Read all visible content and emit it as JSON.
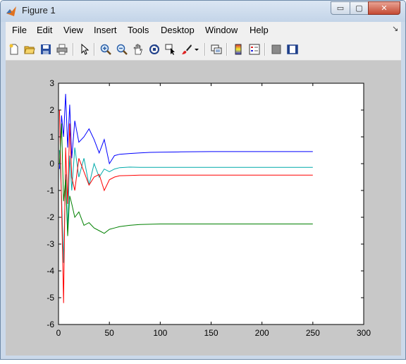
{
  "window": {
    "title": "Figure 1",
    "minimize_label": "▭",
    "maximize_label": "▢",
    "close_label": "✕"
  },
  "menu": {
    "items": [
      "File",
      "Edit",
      "View",
      "Insert",
      "Tools",
      "Desktop",
      "Window",
      "Help"
    ],
    "overflow_label": "↘"
  },
  "toolbar": {
    "buttons": [
      {
        "icon": "new-figure-icon"
      },
      {
        "icon": "open-file-icon"
      },
      {
        "icon": "save-icon"
      },
      {
        "icon": "print-icon"
      },
      {
        "icon": "edit-plot-arrow-icon"
      },
      {
        "icon": "zoom-in-icon"
      },
      {
        "icon": "zoom-out-icon"
      },
      {
        "icon": "pan-hand-icon"
      },
      {
        "icon": "rotate-3d-icon"
      },
      {
        "icon": "data-cursor-icon"
      },
      {
        "icon": "brush-icon"
      },
      {
        "icon": "brush-dropdown-icon"
      },
      {
        "icon": "link-plot-icon"
      },
      {
        "icon": "colorbar-icon"
      },
      {
        "icon": "legend-icon"
      },
      {
        "icon": "hide-plot-tools-icon"
      },
      {
        "icon": "show-plot-tools-icon"
      }
    ]
  },
  "chart_data": {
    "type": "line",
    "title": "",
    "xlabel": "",
    "ylabel": "",
    "xlim": [
      0,
      300
    ],
    "ylim": [
      -6,
      3
    ],
    "xticks": [
      "0",
      "50",
      "100",
      "150",
      "200",
      "250",
      "300"
    ],
    "yticks": [
      "3",
      "2",
      "1",
      "0",
      "-1",
      "-2",
      "-3",
      "-4",
      "-5",
      "-6"
    ],
    "grid": false,
    "legend": "none",
    "series": [
      {
        "color": "#0000ff",
        "x": [
          1,
          3,
          5,
          7,
          9,
          11,
          13,
          16,
          20,
          25,
          30,
          35,
          40,
          45,
          50,
          55,
          60,
          70,
          80,
          90,
          100,
          120,
          150,
          200,
          250
        ],
        "y": [
          -0.2,
          1.8,
          1.0,
          2.6,
          0.6,
          2.2,
          0.2,
          1.6,
          0.8,
          1.0,
          1.3,
          0.9,
          0.4,
          0.9,
          0.0,
          0.3,
          0.35,
          0.38,
          0.4,
          0.42,
          0.43,
          0.44,
          0.45,
          0.45,
          0.45
        ]
      },
      {
        "color": "#00aaaa",
        "x": [
          1,
          3,
          5,
          7,
          9,
          11,
          13,
          16,
          20,
          25,
          30,
          35,
          40,
          45,
          50,
          55,
          60,
          70,
          80,
          90,
          100,
          120,
          150,
          200,
          250
        ],
        "y": [
          0.5,
          -1.2,
          -3.7,
          -0.4,
          -2.5,
          0.3,
          -1.0,
          0.6,
          -0.5,
          0.2,
          -0.8,
          0.0,
          -0.5,
          -0.2,
          -0.3,
          -0.2,
          -0.15,
          -0.13,
          -0.14,
          -0.14,
          -0.14,
          -0.14,
          -0.14,
          -0.14,
          -0.14
        ]
      },
      {
        "color": "#ff0000",
        "x": [
          1,
          3,
          5,
          7,
          9,
          11,
          13,
          16,
          20,
          25,
          30,
          35,
          40,
          45,
          50,
          55,
          60,
          70,
          80,
          90,
          100,
          120,
          150,
          200,
          250
        ],
        "y": [
          2.0,
          -1.5,
          -5.2,
          0.6,
          -1.5,
          1.5,
          -0.5,
          -1.0,
          0.2,
          -0.3,
          -0.8,
          -0.5,
          -0.4,
          -1.0,
          -0.6,
          -0.5,
          -0.45,
          -0.44,
          -0.43,
          -0.43,
          -0.43,
          -0.43,
          -0.43,
          -0.43,
          -0.43
        ]
      },
      {
        "color": "#008000",
        "x": [
          1,
          3,
          5,
          7,
          9,
          11,
          13,
          16,
          20,
          25,
          30,
          35,
          40,
          45,
          50,
          55,
          60,
          70,
          80,
          90,
          100,
          120,
          150,
          200,
          250
        ],
        "y": [
          0.0,
          1.5,
          -1.4,
          -0.6,
          -2.7,
          -1.2,
          -1.5,
          -2.0,
          -1.8,
          -2.3,
          -2.2,
          -2.4,
          -2.5,
          -2.6,
          -2.45,
          -2.4,
          -2.35,
          -2.3,
          -2.27,
          -2.26,
          -2.25,
          -2.25,
          -2.25,
          -2.25,
          -2.25
        ]
      }
    ]
  }
}
